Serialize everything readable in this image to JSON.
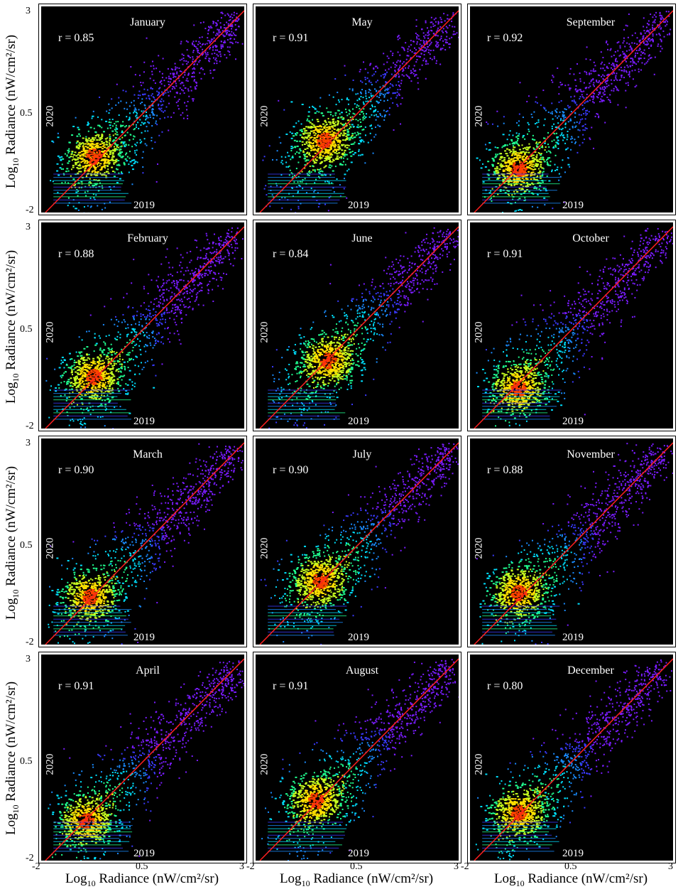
{
  "y_axis_label": {
    "pre": "Log",
    "sub": "10",
    "post": " Radiance (nW/cm²/sr)"
  },
  "x_axis_label": {
    "pre": "Log",
    "sub": "10",
    "post": " Radiance (nW/cm²/sr)"
  },
  "y_ticks": [
    "3",
    "0.5",
    "-2"
  ],
  "x_ticks": [
    "-2",
    "0.5",
    "3"
  ],
  "colors": {
    "background": "#000000",
    "identity_line": "#ff2020",
    "text": "#ffffff"
  },
  "chart_data": [
    {
      "type": "scatter",
      "title": "January",
      "r": "r = 0.85",
      "ylabel_inset": "2020",
      "xlabel_inset": "2019",
      "xlim": [
        -2,
        3
      ],
      "ylim": [
        -2,
        3
      ],
      "identity_line": true,
      "hotspot": [
        -0.8,
        -0.6
      ]
    },
    {
      "type": "scatter",
      "title": "May",
      "r": "r = 0.91",
      "ylabel_inset": "2020",
      "xlabel_inset": "2019",
      "xlim": [
        -2,
        3
      ],
      "ylim": [
        -2,
        3
      ],
      "identity_line": true,
      "hotspot": [
        -0.4,
        -0.2
      ]
    },
    {
      "type": "scatter",
      "title": "September",
      "r": "r = 0.92",
      "ylabel_inset": "2020",
      "xlabel_inset": "2019",
      "xlim": [
        -2,
        3
      ],
      "ylim": [
        -2,
        3
      ],
      "identity_line": true,
      "hotspot": [
        -0.9,
        -0.9
      ]
    },
    {
      "type": "scatter",
      "title": "February",
      "r": "r = 0.88",
      "ylabel_inset": "2020",
      "xlabel_inset": "2019",
      "xlim": [
        -2,
        3
      ],
      "ylim": [
        -2,
        3
      ],
      "identity_line": true,
      "hotspot": [
        -0.8,
        -0.7
      ]
    },
    {
      "type": "scatter",
      "title": "June",
      "r": "r = 0.84",
      "ylabel_inset": "2020",
      "xlabel_inset": "2019",
      "xlim": [
        -2,
        3
      ],
      "ylim": [
        -2,
        3
      ],
      "identity_line": true,
      "hotspot": [
        -0.3,
        -0.3
      ]
    },
    {
      "type": "scatter",
      "title": "October",
      "r": "r = 0.91",
      "ylabel_inset": "2020",
      "xlabel_inset": "2019",
      "xlim": [
        -2,
        3
      ],
      "ylim": [
        -2,
        3
      ],
      "identity_line": true,
      "hotspot": [
        -0.9,
        -1.0
      ]
    },
    {
      "type": "scatter",
      "title": "March",
      "r": "r = 0.90",
      "ylabel_inset": "2020",
      "xlabel_inset": "2019",
      "xlim": [
        -2,
        3
      ],
      "ylim": [
        -2,
        3
      ],
      "identity_line": true,
      "hotspot": [
        -0.9,
        -0.8
      ]
    },
    {
      "type": "scatter",
      "title": "July",
      "r": "r = 0.90",
      "ylabel_inset": "2020",
      "xlabel_inset": "2019",
      "xlim": [
        -2,
        3
      ],
      "ylim": [
        -2,
        3
      ],
      "identity_line": true,
      "hotspot": [
        -0.5,
        -0.4
      ]
    },
    {
      "type": "scatter",
      "title": "November",
      "r": "r = 0.88",
      "ylabel_inset": "2020",
      "xlabel_inset": "2019",
      "xlim": [
        -2,
        3
      ],
      "ylim": [
        -2,
        3
      ],
      "identity_line": true,
      "hotspot": [
        -0.9,
        -0.7
      ]
    },
    {
      "type": "scatter",
      "title": "April",
      "r": "r = 0.91",
      "ylabel_inset": "2020",
      "xlabel_inset": "2019",
      "xlim": [
        -2,
        3
      ],
      "ylim": [
        -2,
        3
      ],
      "identity_line": true,
      "hotspot": [
        -1.0,
        -1.0
      ]
    },
    {
      "type": "scatter",
      "title": "August",
      "r": "r = 0.91",
      "ylabel_inset": "2020",
      "xlabel_inset": "2019",
      "xlim": [
        -2,
        3
      ],
      "ylim": [
        -2,
        3
      ],
      "identity_line": true,
      "hotspot": [
        -0.6,
        -0.5
      ]
    },
    {
      "type": "scatter",
      "title": "December",
      "r": "r = 0.80",
      "ylabel_inset": "2020",
      "xlabel_inset": "2019",
      "xlim": [
        -2,
        3
      ],
      "ylim": [
        -2,
        3
      ],
      "identity_line": true,
      "hotspot": [
        -0.9,
        -0.8
      ]
    }
  ]
}
